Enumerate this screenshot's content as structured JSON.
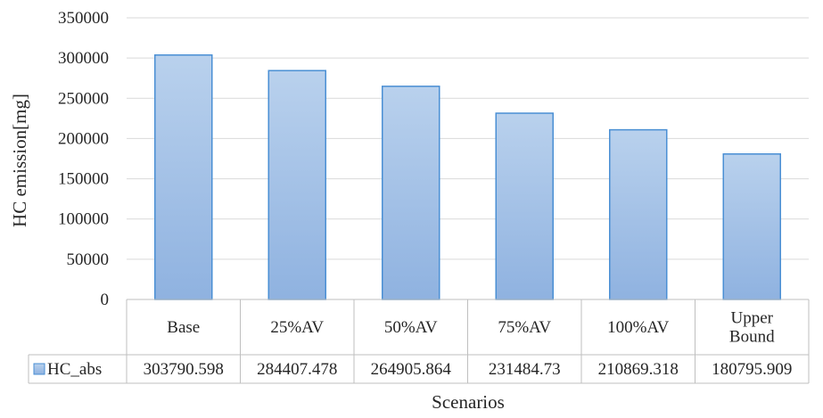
{
  "chart_data": {
    "type": "bar",
    "categories": [
      [
        "Base"
      ],
      [
        "25%AV"
      ],
      [
        "50%AV"
      ],
      [
        "75%AV"
      ],
      [
        "100%AV"
      ],
      [
        "Upper",
        "Bound"
      ]
    ],
    "series": [
      {
        "name": "HC_abs",
        "values": [
          303790.598,
          284407.478,
          264905.864,
          231484.73,
          210869.318,
          180795.909
        ],
        "value_labels": [
          "303790.598",
          "284407.478",
          "264905.864",
          "231484.73",
          "210869.318",
          "180795.909"
        ]
      }
    ],
    "xlabel": "Scenarios",
    "ylabel": "HC emission[mg]",
    "ylim": [
      0,
      350000
    ],
    "yticks": [
      "0",
      "50000",
      "100000",
      "150000",
      "200000",
      "250000",
      "300000",
      "350000"
    ],
    "grid": true,
    "legend": "data-table",
    "colors": {
      "bar_top": "#b9d1ed",
      "bar_bottom": "#8fb2e0",
      "bar_stroke": "#4a8fd4",
      "grid": "#d9d9d9",
      "table_border": "#bfbfbf"
    }
  }
}
